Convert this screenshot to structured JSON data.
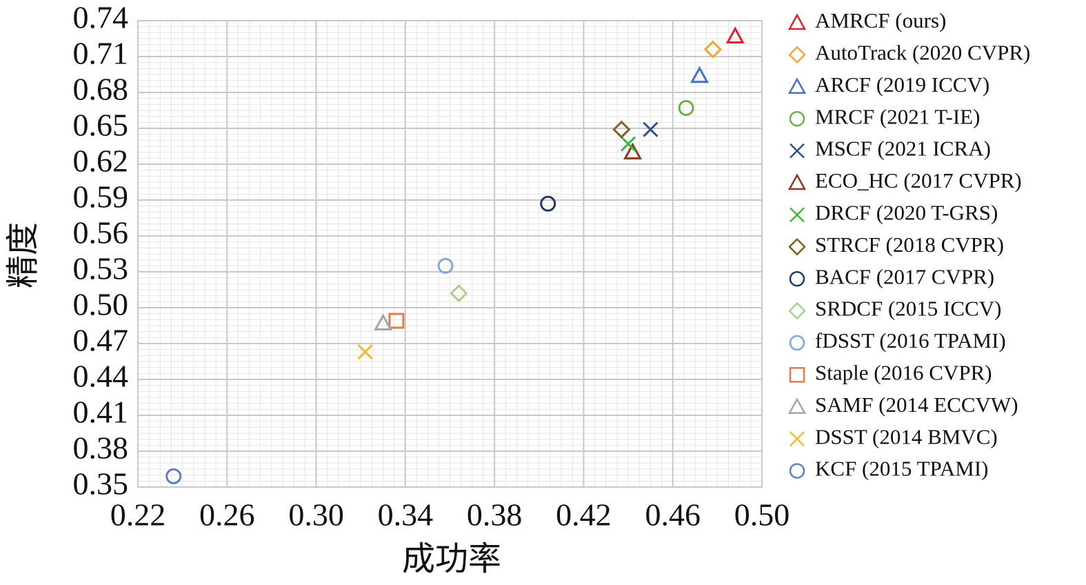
{
  "chart_data": {
    "type": "scatter",
    "x_label": "成功率",
    "y_label": "精度",
    "xlim": [
      0.22,
      0.5
    ],
    "ylim": [
      0.35,
      0.74
    ],
    "xticks": [
      0.22,
      0.26,
      {
        "value": 0.3,
        "label": "0.30"
      },
      0.34,
      0.38,
      0.42,
      0.46,
      {
        "value": 0.5,
        "label": "0.50"
      }
    ],
    "yticks": [
      0.35,
      0.38,
      0.41,
      0.44,
      0.47,
      {
        "value": 0.5,
        "label": "0.50"
      },
      0.53,
      0.56,
      0.59,
      0.62,
      0.65,
      0.68,
      0.71,
      0.74
    ],
    "grid": true,
    "minor_grid": true,
    "legend": "right",
    "series": [
      {
        "name": "AMRCF (ours)",
        "color": "#e0202a",
        "marker": "triangle",
        "x": [
          0.488
        ],
        "values": [
          0.727
        ]
      },
      {
        "name": "AutoTrack (2020 CVPR)",
        "color": "#f0a830",
        "marker": "diamond",
        "x": [
          0.478
        ],
        "values": [
          0.716
        ]
      },
      {
        "name": "ARCF (2019 ICCV)",
        "color": "#4472c4",
        "marker": "triangle",
        "x": [
          0.472
        ],
        "values": [
          0.694
        ]
      },
      {
        "name": "MRCF (2021 T-IE)",
        "color": "#70ad47",
        "marker": "circle",
        "x": [
          0.466
        ],
        "values": [
          0.667
        ]
      },
      {
        "name": "MSCF (2021 ICRA)",
        "color": "#2f4f8f",
        "marker": "x",
        "x": [
          0.45
        ],
        "values": [
          0.649
        ]
      },
      {
        "name": "ECO_HC (2017 CVPR)",
        "color": "#8b3a1a",
        "marker": "triangle",
        "x": [
          0.442
        ],
        "values": [
          0.63
        ]
      },
      {
        "name": "DRCF (2020 T-GRS)",
        "color": "#3cb83c",
        "marker": "x",
        "x": [
          0.44
        ],
        "values": [
          0.637
        ]
      },
      {
        "name": "STRCF (2018 CVPR)",
        "color": "#7f6020",
        "marker": "diamond",
        "x": [
          0.437
        ],
        "values": [
          0.649
        ]
      },
      {
        "name": "BACF (2017 CVPR)",
        "color": "#1f3864",
        "marker": "circle",
        "x": [
          0.404
        ],
        "values": [
          0.587
        ]
      },
      {
        "name": "SRDCF (2015 ICCV)",
        "color": "#a9d18e",
        "marker": "diamond",
        "x": [
          0.364
        ],
        "values": [
          0.512
        ]
      },
      {
        "name": "fDSST (2016 TPAMI)",
        "color": "#7fa7d8",
        "marker": "circle",
        "x": [
          0.358
        ],
        "values": [
          0.535
        ]
      },
      {
        "name": "Staple (2016 CVPR)",
        "color": "#e07b4a",
        "marker": "square",
        "x": [
          0.336
        ],
        "values": [
          0.489
        ]
      },
      {
        "name": "SAMF (2014 ECCVW)",
        "color": "#a5a5a5",
        "marker": "triangle",
        "x": [
          0.33
        ],
        "values": [
          0.487
        ]
      },
      {
        "name": "DSST (2014 BMVC)",
        "color": "#f5b82a",
        "marker": "x",
        "x": [
          0.322
        ],
        "values": [
          0.463
        ]
      },
      {
        "name": "KCF (2015 TPAMI)",
        "color": "#5b7fc4",
        "marker": "circle",
        "x": [
          0.236
        ],
        "values": [
          0.359
        ]
      }
    ]
  }
}
